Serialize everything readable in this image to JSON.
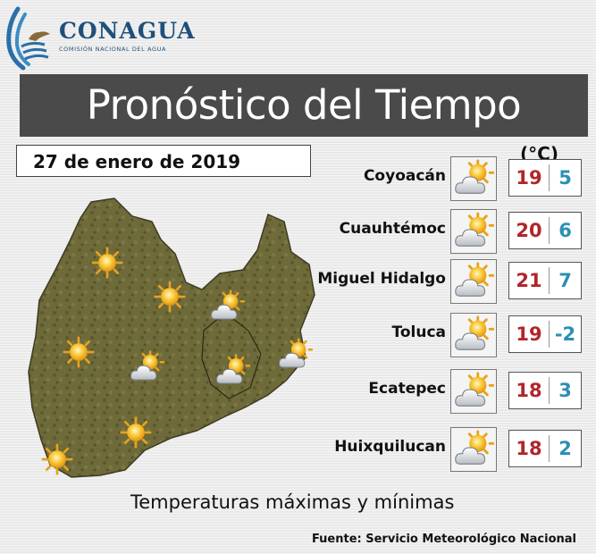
{
  "header": {
    "brand_name": "CONAGUA",
    "brand_subtitle": "COMISIÓN NACIONAL DEL AGUA",
    "logo_icon": "eagle-waves-logo-icon",
    "brand_color": "#1f4f7a"
  },
  "title": "Pronóstico del Tiempo",
  "date": "27 de enero de 2019",
  "unit_label": "(°C)",
  "forecast": [
    {
      "city": "Coyoacán",
      "icon": "partly-cloudy-icon",
      "max": "19",
      "min": "5"
    },
    {
      "city": "Cuauhtémoc",
      "icon": "partly-cloudy-icon",
      "max": "20",
      "min": "6"
    },
    {
      "city": "Miguel Hidalgo",
      "icon": "partly-cloudy-icon",
      "max": "21",
      "min": "7"
    },
    {
      "city": "Toluca",
      "icon": "partly-cloudy-icon",
      "max": "19",
      "min": "-2"
    },
    {
      "city": "Ecatepec",
      "icon": "partly-cloudy-icon",
      "max": "18",
      "min": "3"
    },
    {
      "city": "Huixquilucan",
      "icon": "partly-cloudy-icon",
      "max": "18",
      "min": "2"
    }
  ],
  "map": {
    "icons": [
      "sun-icon",
      "sun-icon",
      "sun-icon",
      "sun-icon",
      "sun-icon",
      "partly-cloudy-icon",
      "partly-cloudy-icon",
      "partly-cloudy-icon",
      "partly-cloudy-icon"
    ]
  },
  "caption": "Temperaturas máximas y mínimas",
  "source": "Fuente: Servicio Meteorológico Nacional",
  "colors": {
    "max_temp": "#b0262b",
    "min_temp": "#2c8fb4",
    "title_bar": "#4a4a4a"
  }
}
